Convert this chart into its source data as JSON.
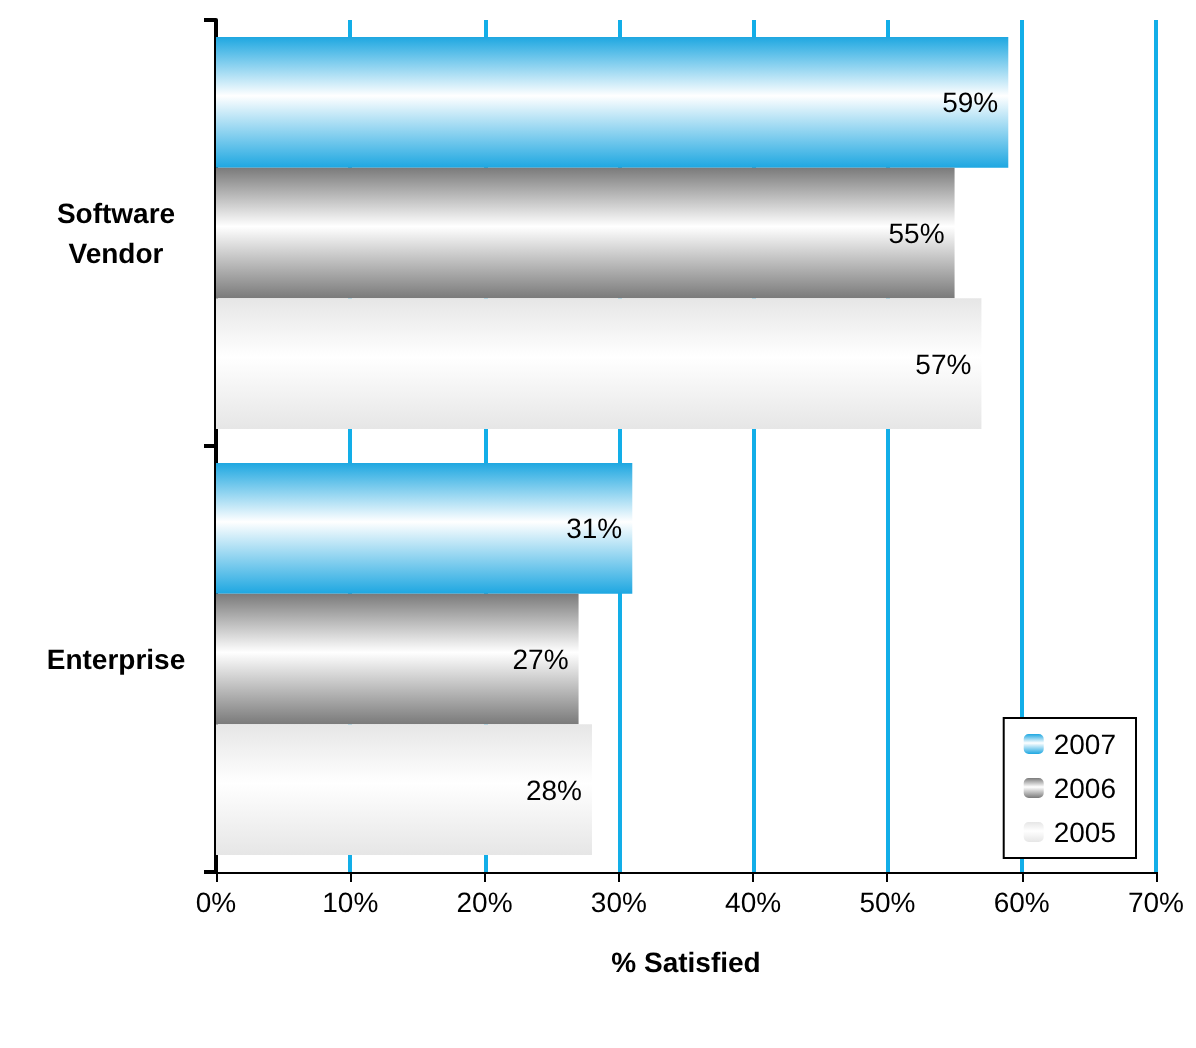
{
  "chart_data": {
    "type": "bar",
    "orientation": "horizontal",
    "xlabel": "% Satisfied",
    "categories": [
      "Software\nVendor",
      "Enterprise"
    ],
    "series": [
      {
        "name": "2007",
        "color": "#1ea7e1",
        "values": [
          59,
          31
        ],
        "value_labels": [
          "59%",
          "31%"
        ]
      },
      {
        "name": "2006",
        "color": "#7a7a7a",
        "values": [
          55,
          27
        ],
        "value_labels": [
          "55%",
          "27%"
        ]
      },
      {
        "name": "2005",
        "color": "#e6e6e6",
        "values": [
          57,
          28
        ],
        "value_labels": [
          "57%",
          "28%"
        ]
      }
    ],
    "xlim": [
      0,
      70
    ],
    "xticks": [
      {
        "value": 0,
        "label": "0%"
      },
      {
        "value": 10,
        "label": "10%"
      },
      {
        "value": 20,
        "label": "20%"
      },
      {
        "value": 30,
        "label": "30%"
      },
      {
        "value": 40,
        "label": "40%"
      },
      {
        "value": 50,
        "label": "50%"
      },
      {
        "value": 60,
        "label": "60%"
      },
      {
        "value": 70,
        "label": "70%"
      }
    ],
    "grid": "x",
    "legend": "bottom right"
  }
}
